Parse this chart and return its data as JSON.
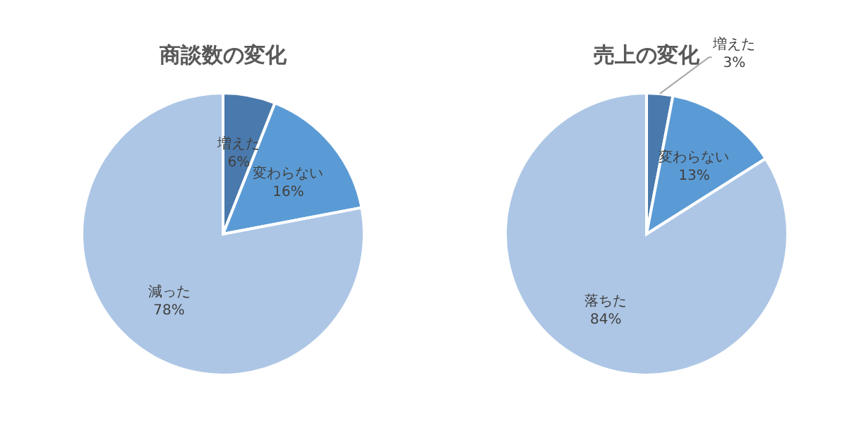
{
  "chart_data": [
    {
      "type": "pie",
      "title": "商談数の変化",
      "categories": [
        "増えた",
        "変わらない",
        "減った"
      ],
      "values": [
        6,
        16,
        78
      ],
      "value_labels": [
        "6%",
        "16%",
        "78%"
      ],
      "colors": [
        "#4a7aad",
        "#5b9bd5",
        "#adc6e5"
      ]
    },
    {
      "type": "pie",
      "title": "売上の変化",
      "categories": [
        "増えた",
        "変わらない",
        "落ちた"
      ],
      "values": [
        3,
        13,
        84
      ],
      "value_labels": [
        "3%",
        "13%",
        "84%"
      ],
      "colors": [
        "#4a7aad",
        "#5b9bd5",
        "#adc6e5"
      ]
    }
  ]
}
